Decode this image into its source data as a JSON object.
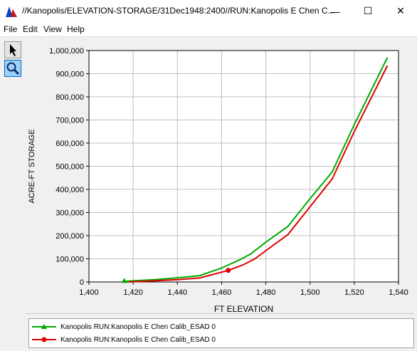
{
  "window": {
    "title": "//Kanopolis/ELEVATION-STORAGE/31Dec1948:2400//RUN:Kanopolis E Chen C...",
    "minimize_glyph": "—",
    "maximize_glyph": "☐",
    "close_glyph": "✕"
  },
  "menu": {
    "items": [
      {
        "label": "File"
      },
      {
        "label": "Edit"
      },
      {
        "label": "View"
      },
      {
        "label": "Help"
      }
    ]
  },
  "toolbar": {
    "tools": [
      {
        "icon": "pointer-icon",
        "active": false
      },
      {
        "icon": "zoom-icon",
        "active": true
      }
    ]
  },
  "chart_data": {
    "type": "line",
    "xlabel": "FT ELEVATION",
    "ylabel": "ACRE-FT STORAGE",
    "xlim": [
      1400,
      1540
    ],
    "ylim": [
      0,
      1000000
    ],
    "xticks": [
      "1,400",
      "1,420",
      "1,440",
      "1,460",
      "1,480",
      "1,500",
      "1,520",
      "1,540"
    ],
    "yticks": [
      "0",
      "100,000",
      "200,000",
      "300,000",
      "400,000",
      "500,000",
      "600,000",
      "700,000",
      "800,000",
      "900,000",
      "1,000,000"
    ],
    "grid": true,
    "legend_placement": "bottom",
    "series": [
      {
        "name": "Kanopolis RUN:Kanopolis E Chen Calib_ESAD  0",
        "color": "#00aa00",
        "marker": "triangle",
        "x": [
          1416,
          1420,
          1430,
          1440,
          1450,
          1460,
          1468,
          1473,
          1480,
          1490,
          1500,
          1510,
          1520,
          1535
        ],
        "y": [
          2000,
          5000,
          10000,
          18000,
          27000,
          60000,
          95000,
          120000,
          172000,
          240000,
          360000,
          475000,
          680000,
          970000
        ],
        "marker_index": 0
      },
      {
        "name": "Kanopolis RUN:Kanopolis E Chen Calib_ESAD  0",
        "color": "#e00000",
        "marker": "circle",
        "x": [
          1418,
          1430,
          1440,
          1450,
          1463,
          1470,
          1475,
          1480,
          1490,
          1500,
          1510,
          1520,
          1535
        ],
        "y": [
          0,
          5000,
          10000,
          17000,
          50000,
          75000,
          100000,
          135000,
          205000,
          325000,
          445000,
          650000,
          935000
        ],
        "marker_index": 4
      }
    ]
  }
}
